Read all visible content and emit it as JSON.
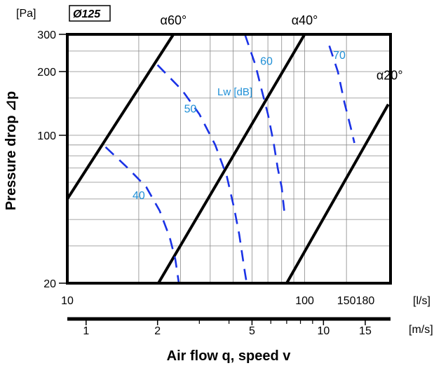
{
  "chart_data": {
    "type": "line",
    "size_label": "Ø125",
    "unit_pa": "[Pa]",
    "unit_ls": "[l/s]",
    "unit_ms": "[m/s]",
    "ylabel": "Pressure drop ⊿p",
    "xlabel": "Air flow q, speed v",
    "lw_label": "Lw [dB]",
    "x_scale": "log",
    "y_scale": "log",
    "xlim": [
      10,
      230
    ],
    "ylim": [
      20,
      300
    ],
    "x_ticks": [
      {
        "v": 10,
        "label": "10"
      },
      {
        "v": 100,
        "label": "100"
      },
      {
        "v": 150,
        "label": "150"
      },
      {
        "v": 180,
        "label": "180"
      }
    ],
    "y_ticks": [
      {
        "v": 20,
        "label": "20"
      },
      {
        "v": 100,
        "label": "100"
      },
      {
        "v": 200,
        "label": "200"
      },
      {
        "v": 300,
        "label": "300"
      }
    ],
    "speed_ticks": [
      {
        "v": 1,
        "label": "1"
      },
      {
        "v": 2,
        "label": "2"
      },
      {
        "v": 5,
        "label": "5"
      },
      {
        "v": 10,
        "label": "10"
      },
      {
        "v": 15,
        "label": "15"
      }
    ],
    "speed_minor": [
      3,
      4,
      6,
      7,
      8,
      9
    ],
    "grid_x": [
      20,
      30,
      40,
      50,
      60,
      70,
      80,
      90,
      100,
      150
    ],
    "grid_y": [
      30,
      40,
      50,
      60,
      70,
      80,
      90,
      100,
      150,
      200,
      250
    ],
    "series": [
      {
        "name": "α60°",
        "style": "solid",
        "color": "#000000",
        "points": [
          [
            10,
            50
          ],
          [
            28,
            300
          ]
        ]
      },
      {
        "name": "α40°",
        "style": "solid",
        "color": "#000000",
        "points": [
          [
            24.2,
            20
          ],
          [
            100,
            300
          ]
        ]
      },
      {
        "name": "α20°",
        "style": "solid",
        "color": "#000000",
        "points": [
          [
            84,
            20
          ],
          [
            225,
            140
          ]
        ]
      },
      {
        "name": "40",
        "style": "dashed",
        "color": "#1a32e6",
        "points": [
          [
            14.5,
            88
          ],
          [
            18,
            70
          ],
          [
            21.5,
            57
          ],
          [
            24.5,
            44
          ],
          [
            27,
            33
          ],
          [
            28.5,
            26
          ],
          [
            29.5,
            20
          ]
        ]
      },
      {
        "name": "50",
        "style": "dashed",
        "color": "#1a32e6",
        "points": [
          [
            24,
            215
          ],
          [
            30.5,
            163
          ],
          [
            36,
            126
          ],
          [
            42,
            90
          ],
          [
            47,
            64
          ],
          [
            50.5,
            45
          ],
          [
            53,
            34
          ],
          [
            56,
            22.5
          ],
          [
            57,
            20
          ]
        ]
      },
      {
        "name": "60",
        "style": "dashed",
        "color": "#1a32e6",
        "points": [
          [
            56,
            300
          ],
          [
            62,
            215
          ],
          [
            66,
            163
          ],
          [
            70,
            126
          ],
          [
            74,
            92
          ],
          [
            77,
            70
          ],
          [
            80,
            57
          ],
          [
            82,
            44
          ]
        ]
      },
      {
        "name": "70",
        "style": "dashed",
        "color": "#1a32e6",
        "points": [
          [
            127,
            265
          ],
          [
            138,
            200
          ],
          [
            147,
            143
          ],
          [
            156,
            110
          ],
          [
            162,
            92
          ]
        ]
      }
    ],
    "curve_labels": [
      {
        "text": "40",
        "x": 20,
        "y": 50,
        "color": "#1f8fd6"
      },
      {
        "text": "50",
        "x": 33,
        "y": 128,
        "color": "#1f8fd6"
      },
      {
        "text": "60",
        "x": 69,
        "y": 215,
        "color": "#1f8fd6"
      },
      {
        "text": "70",
        "x": 140,
        "y": 230,
        "color": "#1f8fd6"
      }
    ],
    "angle_labels": [
      {
        "text": "α60°",
        "x": 28,
        "y": 300
      },
      {
        "text": "α40°",
        "x": 100,
        "y": 300
      },
      {
        "text": "α20°",
        "x": 228,
        "y": 165
      }
    ]
  }
}
